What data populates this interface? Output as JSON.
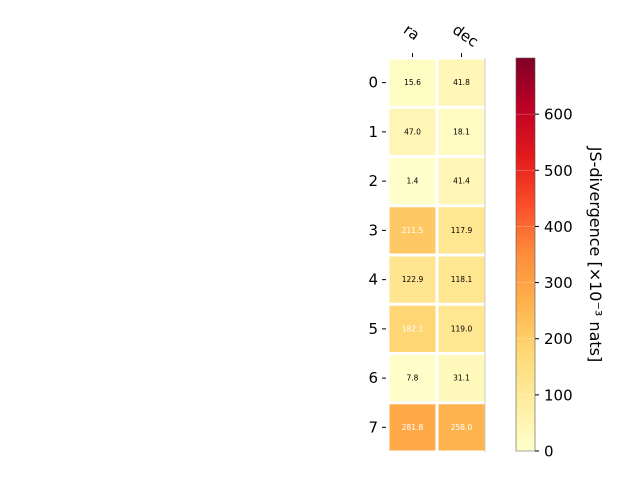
{
  "chart_data": {
    "type": "heatmap",
    "x_categories": [
      "ra",
      "dec"
    ],
    "y_categories": [
      "0",
      "1",
      "2",
      "3",
      "4",
      "5",
      "6",
      "7"
    ],
    "values": [
      [
        15.6,
        41.8
      ],
      [
        47.0,
        18.1
      ],
      [
        1.4,
        41.4
      ],
      [
        211.5,
        117.9
      ],
      [
        122.9,
        118.1
      ],
      [
        182.1,
        119.0
      ],
      [
        7.8,
        31.1
      ],
      [
        281.8,
        258.0
      ]
    ],
    "value_labels": [
      [
        "15.6",
        "41.8"
      ],
      [
        "47.0",
        "18.1"
      ],
      [
        "1.4",
        "41.4"
      ],
      [
        "211.5",
        "117.9"
      ],
      [
        "122.9",
        "118.1"
      ],
      [
        "182.1",
        "119.0"
      ],
      [
        "7.8",
        "31.1"
      ],
      [
        "281.8",
        "258.0"
      ]
    ],
    "colorbar": {
      "label": "JS-divergence [×10⁻³ nats]",
      "range": [
        0,
        700
      ],
      "ticks": [
        0,
        100,
        200,
        300,
        400,
        500,
        600
      ],
      "colormap": "YlOrRd"
    }
  }
}
